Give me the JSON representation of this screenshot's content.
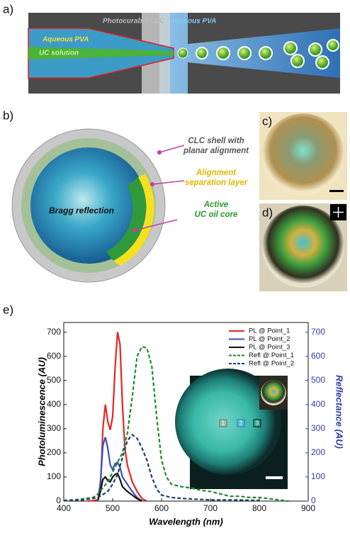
{
  "panel_labels": [
    "a)",
    "b)",
    "c)",
    "d)",
    "e)"
  ],
  "panel_a": {
    "photocurable": "Photocurable CLC",
    "aqueous_pva_outer": "Aqueous PVA",
    "aqueous_pva_inner": "Aqueous PVA",
    "uc_solution": "UC solution"
  },
  "panel_b": {
    "center_label": "Bragg reflection",
    "callouts": [
      [
        "CLC shell with",
        "planar alignment"
      ],
      [
        "Alignment",
        "separation layer"
      ],
      [
        "Active",
        "UC oil core"
      ]
    ]
  },
  "chart_data": {
    "type": "line",
    "xlabel": "Wavelength (nm)",
    "ylabel": "Photoluminescence (AU)",
    "y2label": "Reflectance (AU)",
    "xlim": [
      400,
      900
    ],
    "xticks": [
      400,
      500,
      600,
      700,
      800,
      900
    ],
    "ylim": [
      0,
      740
    ],
    "yticks": [
      0,
      100,
      200,
      300,
      400,
      500,
      600,
      700
    ],
    "y2lim": [
      0,
      740
    ],
    "y2ticks": [
      0,
      100,
      200,
      300,
      400,
      500,
      600,
      700
    ],
    "legend": "upper right",
    "inset_labels": [
      "1",
      "2",
      "3"
    ],
    "series": [
      {
        "name": "PL @ Point_1",
        "color": "#e32626",
        "line_style": "solid",
        "x": [
          450,
          470,
          475,
          480,
          485,
          490,
          495,
          500,
          505,
          510,
          515,
          520,
          525,
          530,
          540,
          550,
          560,
          570
        ],
        "values": [
          0,
          5,
          50,
          300,
          400,
          330,
          295,
          350,
          550,
          700,
          650,
          400,
          220,
          150,
          80,
          40,
          10,
          0
        ]
      },
      {
        "name": "PL @ Point_2",
        "color": "#3a4fb5",
        "line_style": "solid",
        "x": [
          470,
          475,
          480,
          485,
          490,
          495,
          500,
          505,
          510,
          515,
          520,
          530,
          540,
          550,
          560
        ],
        "values": [
          5,
          80,
          230,
          265,
          220,
          150,
          130,
          155,
          160,
          140,
          100,
          70,
          40,
          15,
          0
        ]
      },
      {
        "name": "PL @ Point_3",
        "color": "#111111",
        "line_style": "solid",
        "x": [
          470,
          475,
          480,
          485,
          490,
          495,
          500,
          505,
          510,
          515,
          520,
          530,
          540,
          550,
          560
        ],
        "values": [
          5,
          40,
          90,
          100,
          85,
          80,
          100,
          110,
          115,
          90,
          60,
          40,
          25,
          10,
          0
        ]
      },
      {
        "name": "Refl @ Point_1",
        "color": "#1e8a2e",
        "line_style": "dashed",
        "axis": "y2",
        "x": [
          400,
          420,
          440,
          460,
          470,
          480,
          490,
          500,
          510,
          520,
          530,
          540,
          550,
          560,
          570,
          580,
          590,
          600,
          610,
          620,
          640,
          660,
          680,
          700,
          720,
          740,
          760,
          780,
          800,
          820,
          840,
          860
        ],
        "values": [
          3,
          5,
          10,
          15,
          30,
          55,
          80,
          120,
          160,
          200,
          280,
          430,
          600,
          640,
          635,
          560,
          350,
          170,
          100,
          70,
          60,
          55,
          45,
          40,
          30,
          20,
          20,
          15,
          15,
          10,
          5,
          0
        ]
      },
      {
        "name": "Refl @ Point_2",
        "color": "#1c3f6e",
        "line_style": "dashed",
        "axis": "y2",
        "x": [
          400,
          440,
          470,
          490,
          500,
          510,
          520,
          530,
          540,
          550,
          560,
          570,
          580,
          590,
          600,
          620,
          650,
          700,
          750,
          800
        ],
        "values": [
          2,
          5,
          15,
          40,
          70,
          110,
          180,
          250,
          275,
          260,
          220,
          170,
          100,
          50,
          25,
          15,
          10,
          5,
          5,
          3
        ]
      }
    ]
  }
}
